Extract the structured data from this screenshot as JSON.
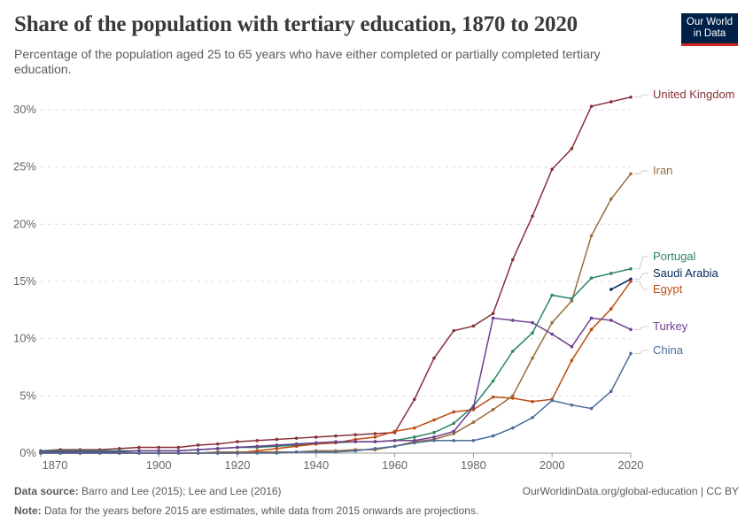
{
  "header": {
    "title": "Share of the population with tertiary education, 1870 to 2020",
    "subtitle": "Percentage of the population aged 25 to 65 years who have either completed or partially completed tertiary education.",
    "logo_text": "Our World in Data"
  },
  "footer": {
    "source_label": "Data source:",
    "source": "Barro and Lee (2015); Lee and Lee (2016)",
    "url": "OurWorldinData.org/global-education | CC BY",
    "note_label": "Note:",
    "note": "Data for the years before 2015 are estimates, while data from 2015 onwards are projections."
  },
  "chart_data": {
    "type": "line",
    "title": "Share of the population with tertiary education, 1870 to 2020",
    "xlim": [
      1870,
      2020
    ],
    "ylim": [
      0,
      30
    ],
    "x_ticks": [
      "1870",
      "1900",
      "1920",
      "1940",
      "1960",
      "1980",
      "2000",
      "2020"
    ],
    "y_ticks": [
      "0%",
      "5%",
      "10%",
      "15%",
      "20%",
      "25%",
      "30%"
    ],
    "grid": "horizontal dashed",
    "legend": "right, line-end labels",
    "x": [
      1870,
      1875,
      1880,
      1885,
      1890,
      1895,
      1900,
      1905,
      1910,
      1915,
      1920,
      1925,
      1930,
      1935,
      1940,
      1945,
      1950,
      1955,
      1960,
      1965,
      1970,
      1975,
      1980,
      1985,
      1990,
      1995,
      2000,
      2005,
      2010,
      2015,
      2020
    ],
    "series": [
      {
        "name": "United Kingdom",
        "color": "#883039",
        "values": [
          0.2,
          0.3,
          0.3,
          0.3,
          0.4,
          0.5,
          0.5,
          0.5,
          0.7,
          0.8,
          1.0,
          1.1,
          1.2,
          1.3,
          1.4,
          1.5,
          1.6,
          1.7,
          1.8,
          4.7,
          8.3,
          10.7,
          11.1,
          12.2,
          16.9,
          20.7,
          24.8,
          26.6,
          30.3,
          30.7,
          31.1
        ]
      },
      {
        "name": "Iran",
        "color": "#996d39",
        "values": [
          0,
          0,
          0,
          0,
          0,
          0,
          0,
          0,
          0,
          0.1,
          0.1,
          0.1,
          0.1,
          0.1,
          0.2,
          0.2,
          0.3,
          0.3,
          0.6,
          1.0,
          1.2,
          1.7,
          2.7,
          3.8,
          5.0,
          8.3,
          11.4,
          13.3,
          19.0,
          22.2,
          24.4
        ]
      },
      {
        "name": "Portugal",
        "color": "#2c8465",
        "values": [
          0.2,
          0.2,
          0.2,
          0.2,
          0.2,
          0.2,
          0.2,
          0.2,
          0.3,
          0.4,
          0.5,
          0.5,
          0.6,
          0.7,
          0.8,
          0.9,
          1.0,
          1.0,
          1.1,
          1.4,
          1.8,
          2.6,
          4.1,
          6.3,
          8.9,
          10.5,
          13.8,
          13.5,
          15.3,
          15.7,
          16.1
        ]
      },
      {
        "name": "Saudi Arabia",
        "color": "#00295b",
        "values": [
          null,
          null,
          null,
          null,
          null,
          null,
          null,
          null,
          null,
          null,
          null,
          null,
          null,
          null,
          null,
          null,
          null,
          null,
          null,
          null,
          null,
          null,
          null,
          null,
          null,
          null,
          null,
          null,
          null,
          14.3,
          15.2
        ]
      },
      {
        "name": "Egypt",
        "color": "#be4a10",
        "values": [
          0,
          0,
          0,
          0,
          0,
          0,
          0,
          0,
          0,
          0,
          0,
          0.2,
          0.4,
          0.6,
          0.8,
          0.9,
          1.2,
          1.4,
          1.9,
          2.2,
          2.9,
          3.6,
          3.8,
          4.9,
          4.8,
          4.5,
          4.7,
          8.1,
          10.8,
          12.6,
          15.0
        ]
      },
      {
        "name": "Turkey",
        "color": "#6d3e91",
        "values": [
          0.1,
          0.1,
          0.1,
          0.1,
          0.1,
          0.2,
          0.2,
          0.2,
          0.3,
          0.4,
          0.5,
          0.6,
          0.7,
          0.8,
          0.9,
          1.0,
          1.0,
          1.0,
          1.1,
          1.1,
          1.4,
          1.9,
          4.0,
          11.8,
          11.6,
          11.4,
          10.4,
          9.3,
          11.8,
          11.6,
          10.8
        ]
      },
      {
        "name": "China",
        "color": "#4c6a9c",
        "values": [
          0,
          0,
          0,
          0,
          0,
          0,
          0,
          0,
          0,
          0,
          0,
          0,
          0,
          0.1,
          0.1,
          0.1,
          0.2,
          0.4,
          0.6,
          0.9,
          1.1,
          1.1,
          1.1,
          1.5,
          2.2,
          3.1,
          4.6,
          4.2,
          3.9,
          5.4,
          8.7
        ]
      }
    ]
  }
}
